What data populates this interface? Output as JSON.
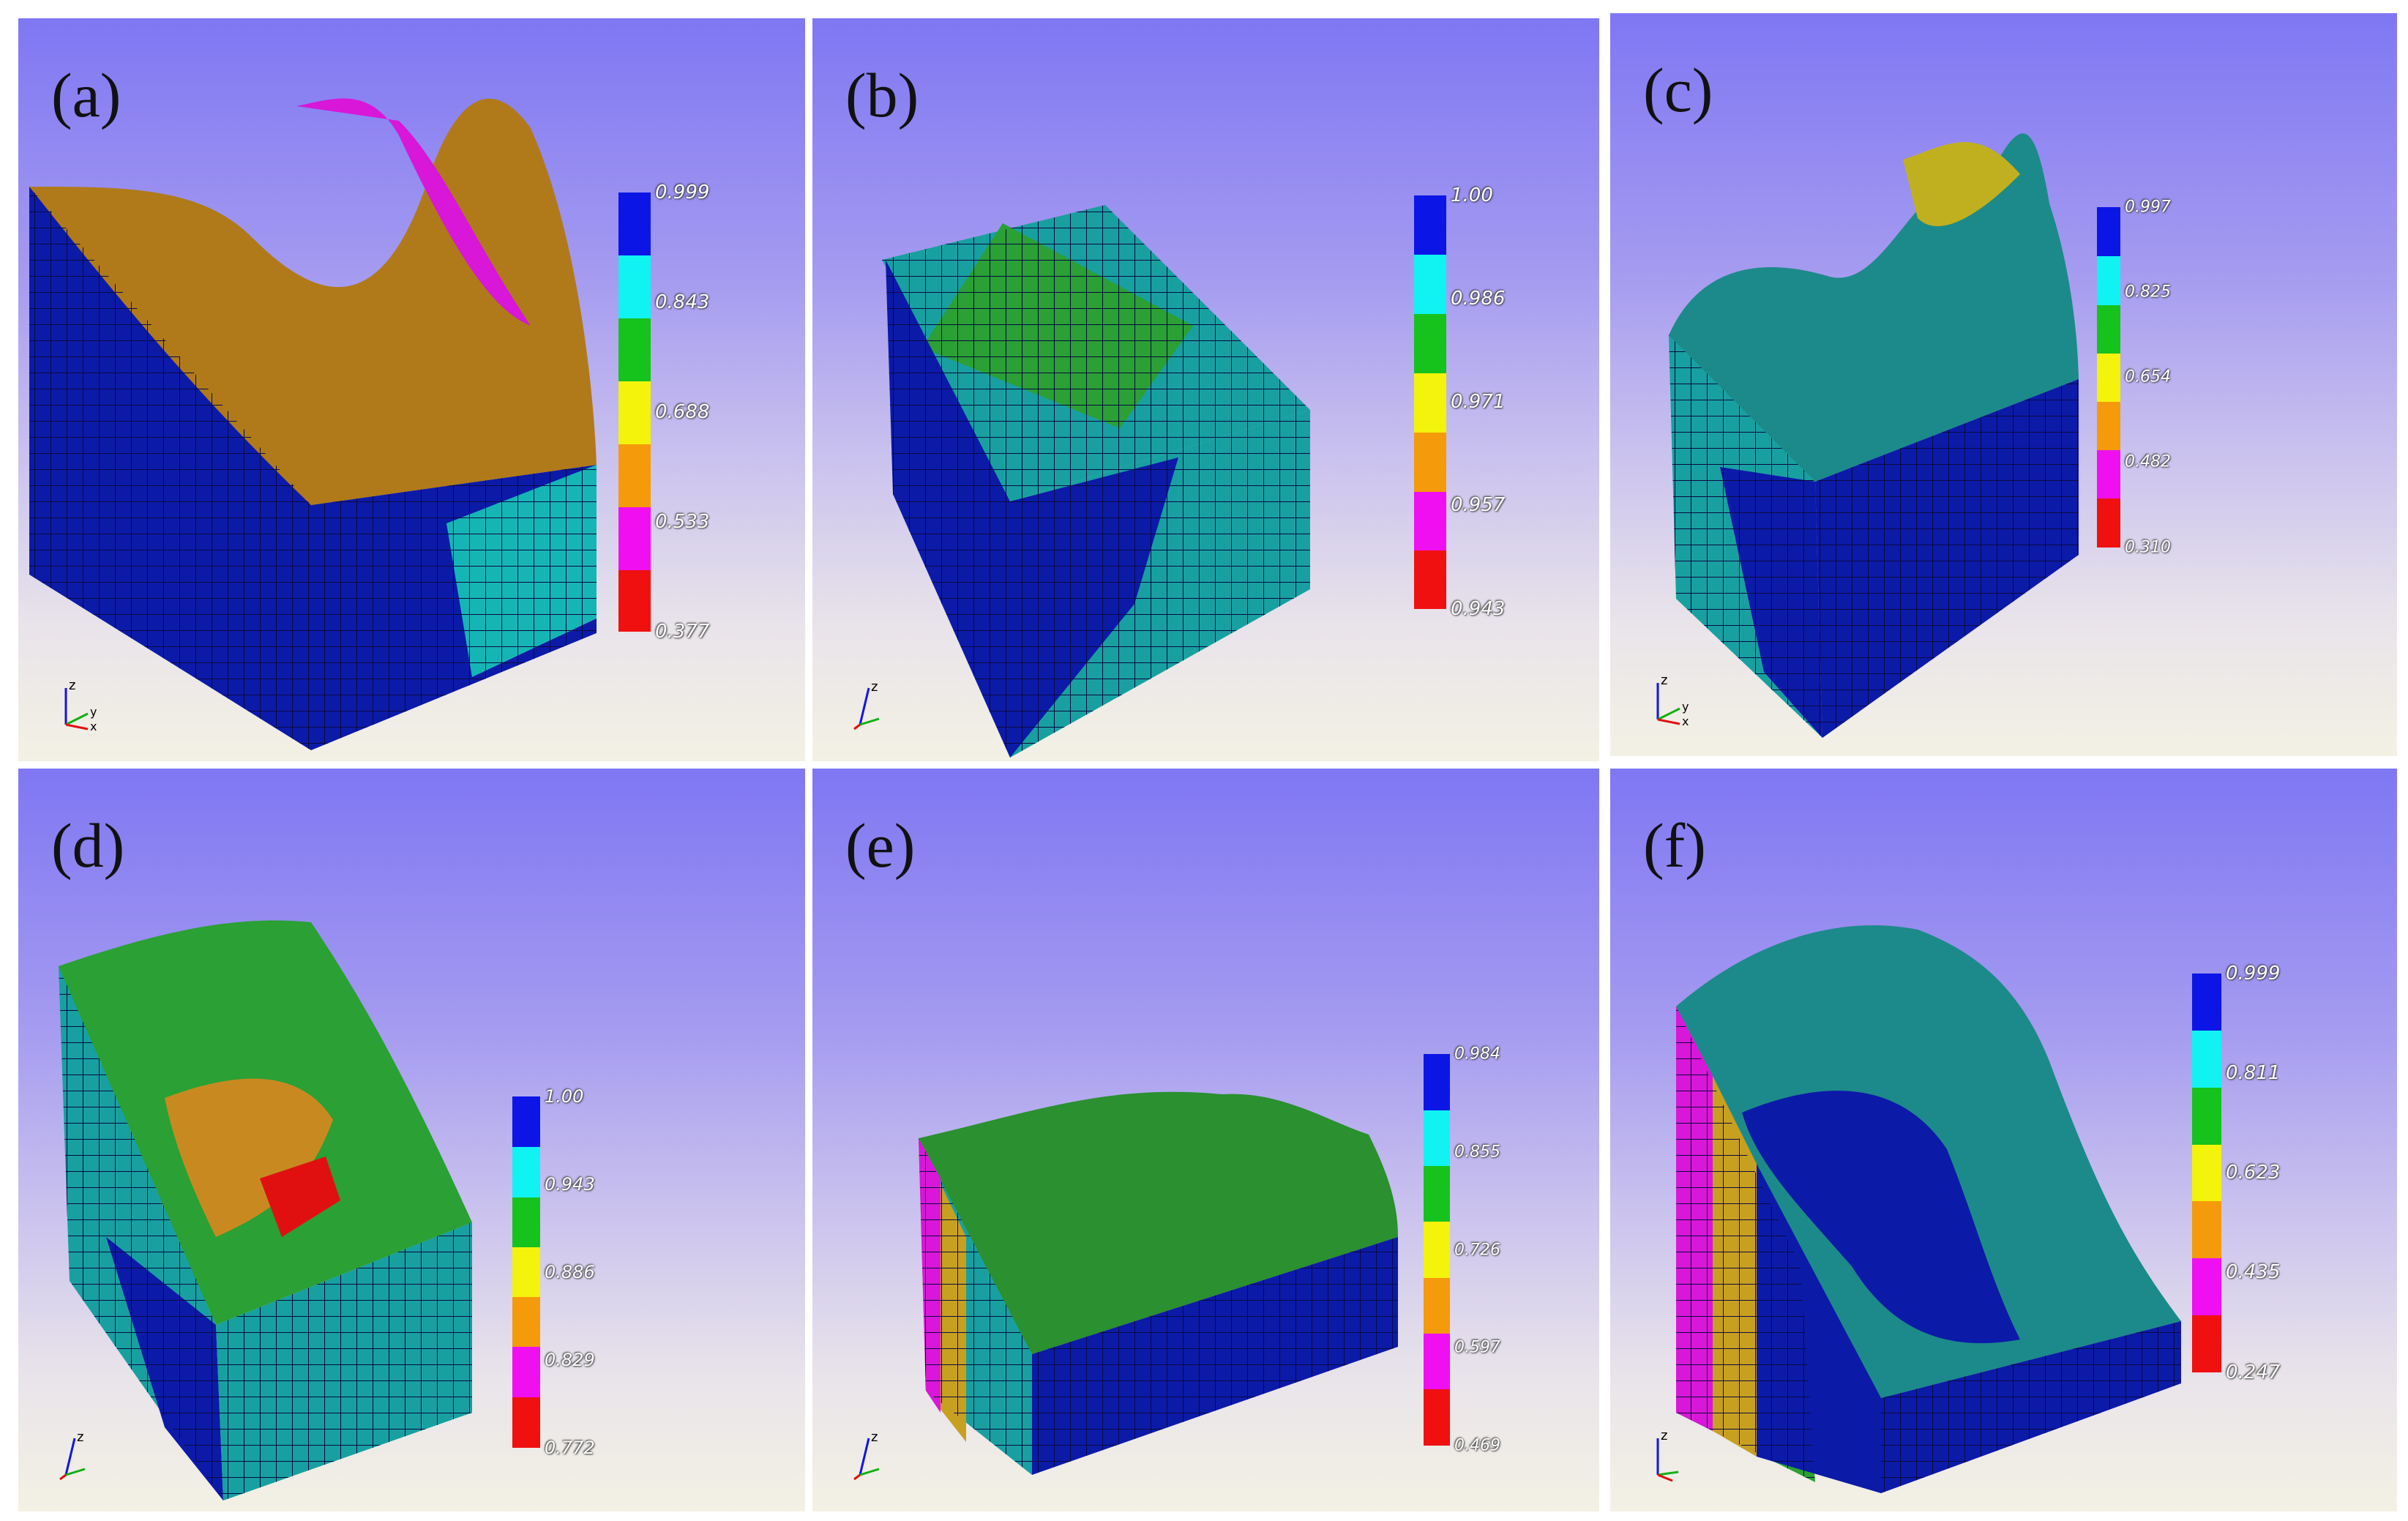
{
  "panels": [
    {
      "label": "(a)",
      "ticks": [
        "0.999",
        "0.843",
        "0.688",
        "0.533",
        "0.377"
      ]
    },
    {
      "label": "(b)",
      "ticks": [
        "1.00",
        "0.986",
        "0.971",
        "0.957",
        "0.943"
      ]
    },
    {
      "label": "(c)",
      "ticks": [
        "0.997",
        "0.825",
        "0.654",
        "0.482",
        "0.310"
      ]
    },
    {
      "label": "(d)",
      "ticks": [
        "1.00",
        "0.943",
        "0.886",
        "0.829",
        "0.772"
      ]
    },
    {
      "label": "(e)",
      "ticks": [
        "0.984",
        "0.855",
        "0.726",
        "0.597",
        "0.469"
      ]
    },
    {
      "label": "(f)",
      "ticks": [
        "0.999",
        "0.811",
        "0.623",
        "0.435",
        "0.247"
      ]
    }
  ],
  "colorbar_colors": [
    "#0b16e6",
    "#11f2f2",
    "#16c21c",
    "#f3f30b",
    "#f59a0a",
    "#f00ff0",
    "#f01010"
  ],
  "axis_labels": {
    "z": "z",
    "y": "y",
    "x": "x"
  }
}
